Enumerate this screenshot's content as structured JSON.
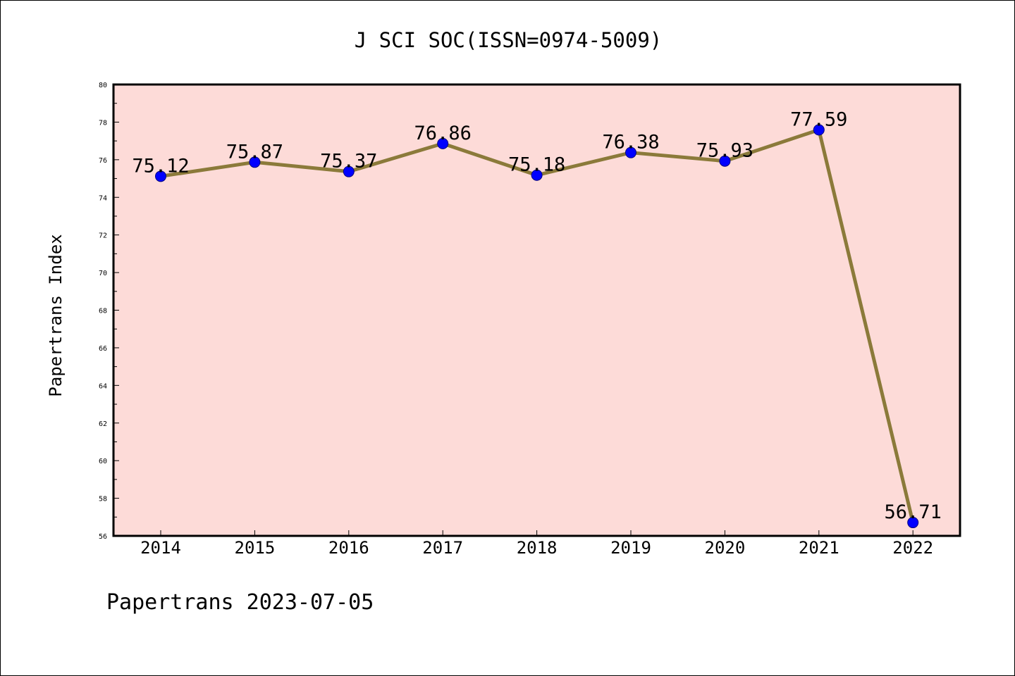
{
  "footer": {
    "text": "Papertrans 2023-07-05"
  },
  "chart_data": {
    "type": "line",
    "title": "J SCI SOC(ISSN=0974-5009)",
    "xlabel": "",
    "ylabel": "Papertrans Index",
    "categories": [
      "2014",
      "2015",
      "2016",
      "2017",
      "2018",
      "2019",
      "2020",
      "2021",
      "2022"
    ],
    "series": [
      {
        "values": [
          75.12,
          75.87,
          75.37,
          76.86,
          75.18,
          76.38,
          75.93,
          77.59,
          56.71
        ],
        "labels": [
          "75.12",
          "75.87",
          "75.37",
          "76.86",
          "75.18",
          "76.38",
          "75.93",
          "77.59",
          "56.71"
        ]
      }
    ],
    "ylim": [
      56,
      80
    ],
    "yticks": [
      "56",
      "58",
      "60",
      "62",
      "64",
      "66",
      "68",
      "70",
      "72",
      "74",
      "76",
      "78",
      "80"
    ],
    "grid": false,
    "legend": "none",
    "colors": {
      "plot_background": "#fddbd8",
      "line": "#8b7a3a",
      "marker": "#0000ff",
      "marker_edge": "#000080",
      "text": "#000000"
    }
  }
}
